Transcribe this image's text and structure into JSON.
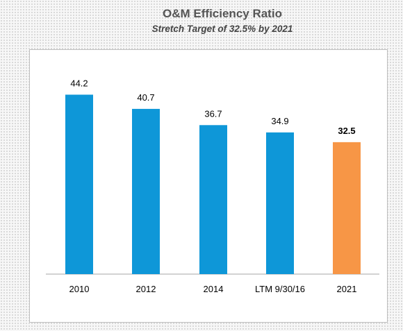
{
  "chart_data": {
    "type": "bar",
    "title": "O&M Efficiency Ratio",
    "subtitle": "Stretch Target of 32.5% by 2021",
    "categories": [
      "2010",
      "2012",
      "2014",
      "LTM 9/30/16",
      "2021"
    ],
    "values": [
      44.2,
      40.7,
      36.7,
      34.9,
      32.5
    ],
    "data_labels": [
      "44.2",
      "40.7",
      "36.7",
      "34.9",
      "32.5"
    ],
    "highlight_index": 4,
    "colors": {
      "bar": "#0e97d8",
      "highlight": "#f79646",
      "axis": "#a6a6a6",
      "label": "#000000"
    },
    "xlabel": "",
    "ylabel": "",
    "ylim": [
      0,
      50
    ],
    "grid": false,
    "legend": "none"
  }
}
